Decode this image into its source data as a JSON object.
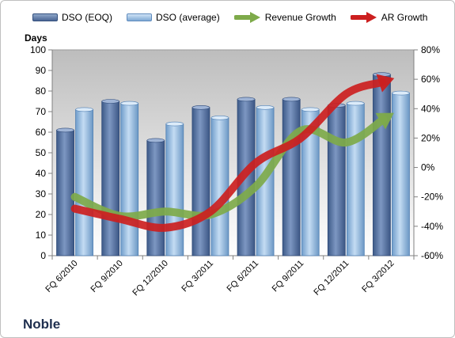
{
  "company": "Noble",
  "legend": {
    "eoq": "DSO (EOQ)",
    "avg": "DSO (average)",
    "rev": "Revenue Growth",
    "ar": "AR Growth"
  },
  "colors": {
    "eoq": "#4f6fa0",
    "avg": "#8fb6df",
    "rev": "#7eaa4a",
    "ar": "#cc1f1f",
    "plot_bg_top": "#bdbdbd",
    "plot_bg_bottom": "#ffffff"
  },
  "chart_data": {
    "type": "bar",
    "categories": [
      "FQ 6/2010",
      "FQ 9/2010",
      "FQ 12/2010",
      "FQ 3/2011",
      "FQ 6/2011",
      "FQ 9/2011",
      "FQ 12/2011",
      "FQ 3/2012"
    ],
    "series": [
      {
        "name": "DSO (EOQ)",
        "axis": "left",
        "values": [
          61,
          75,
          56,
          72,
          76,
          76,
          73,
          88
        ]
      },
      {
        "name": "DSO (average)",
        "axis": "left",
        "values": [
          71,
          74,
          64,
          67,
          72,
          71,
          74,
          79
        ]
      },
      {
        "name": "Revenue Growth",
        "axis": "right",
        "values": [
          -0.2,
          -0.33,
          -0.3,
          -0.32,
          -0.13,
          0.25,
          0.17,
          0.36
        ]
      },
      {
        "name": "AR Growth",
        "axis": "right",
        "values": [
          -0.28,
          -0.35,
          -0.41,
          -0.3,
          0.03,
          0.2,
          0.5,
          0.6
        ]
      }
    ],
    "ylabel": "Days",
    "ylim": [
      0,
      100
    ],
    "yticks": [
      0,
      10,
      20,
      30,
      40,
      50,
      60,
      70,
      80,
      90,
      100
    ],
    "y2lim": [
      -0.6,
      0.8
    ],
    "y2ticks": [
      "-60%",
      "-40%",
      "-20%",
      "0%",
      "20%",
      "40%",
      "60%",
      "80%"
    ],
    "legend_position": "top",
    "grid": false
  }
}
